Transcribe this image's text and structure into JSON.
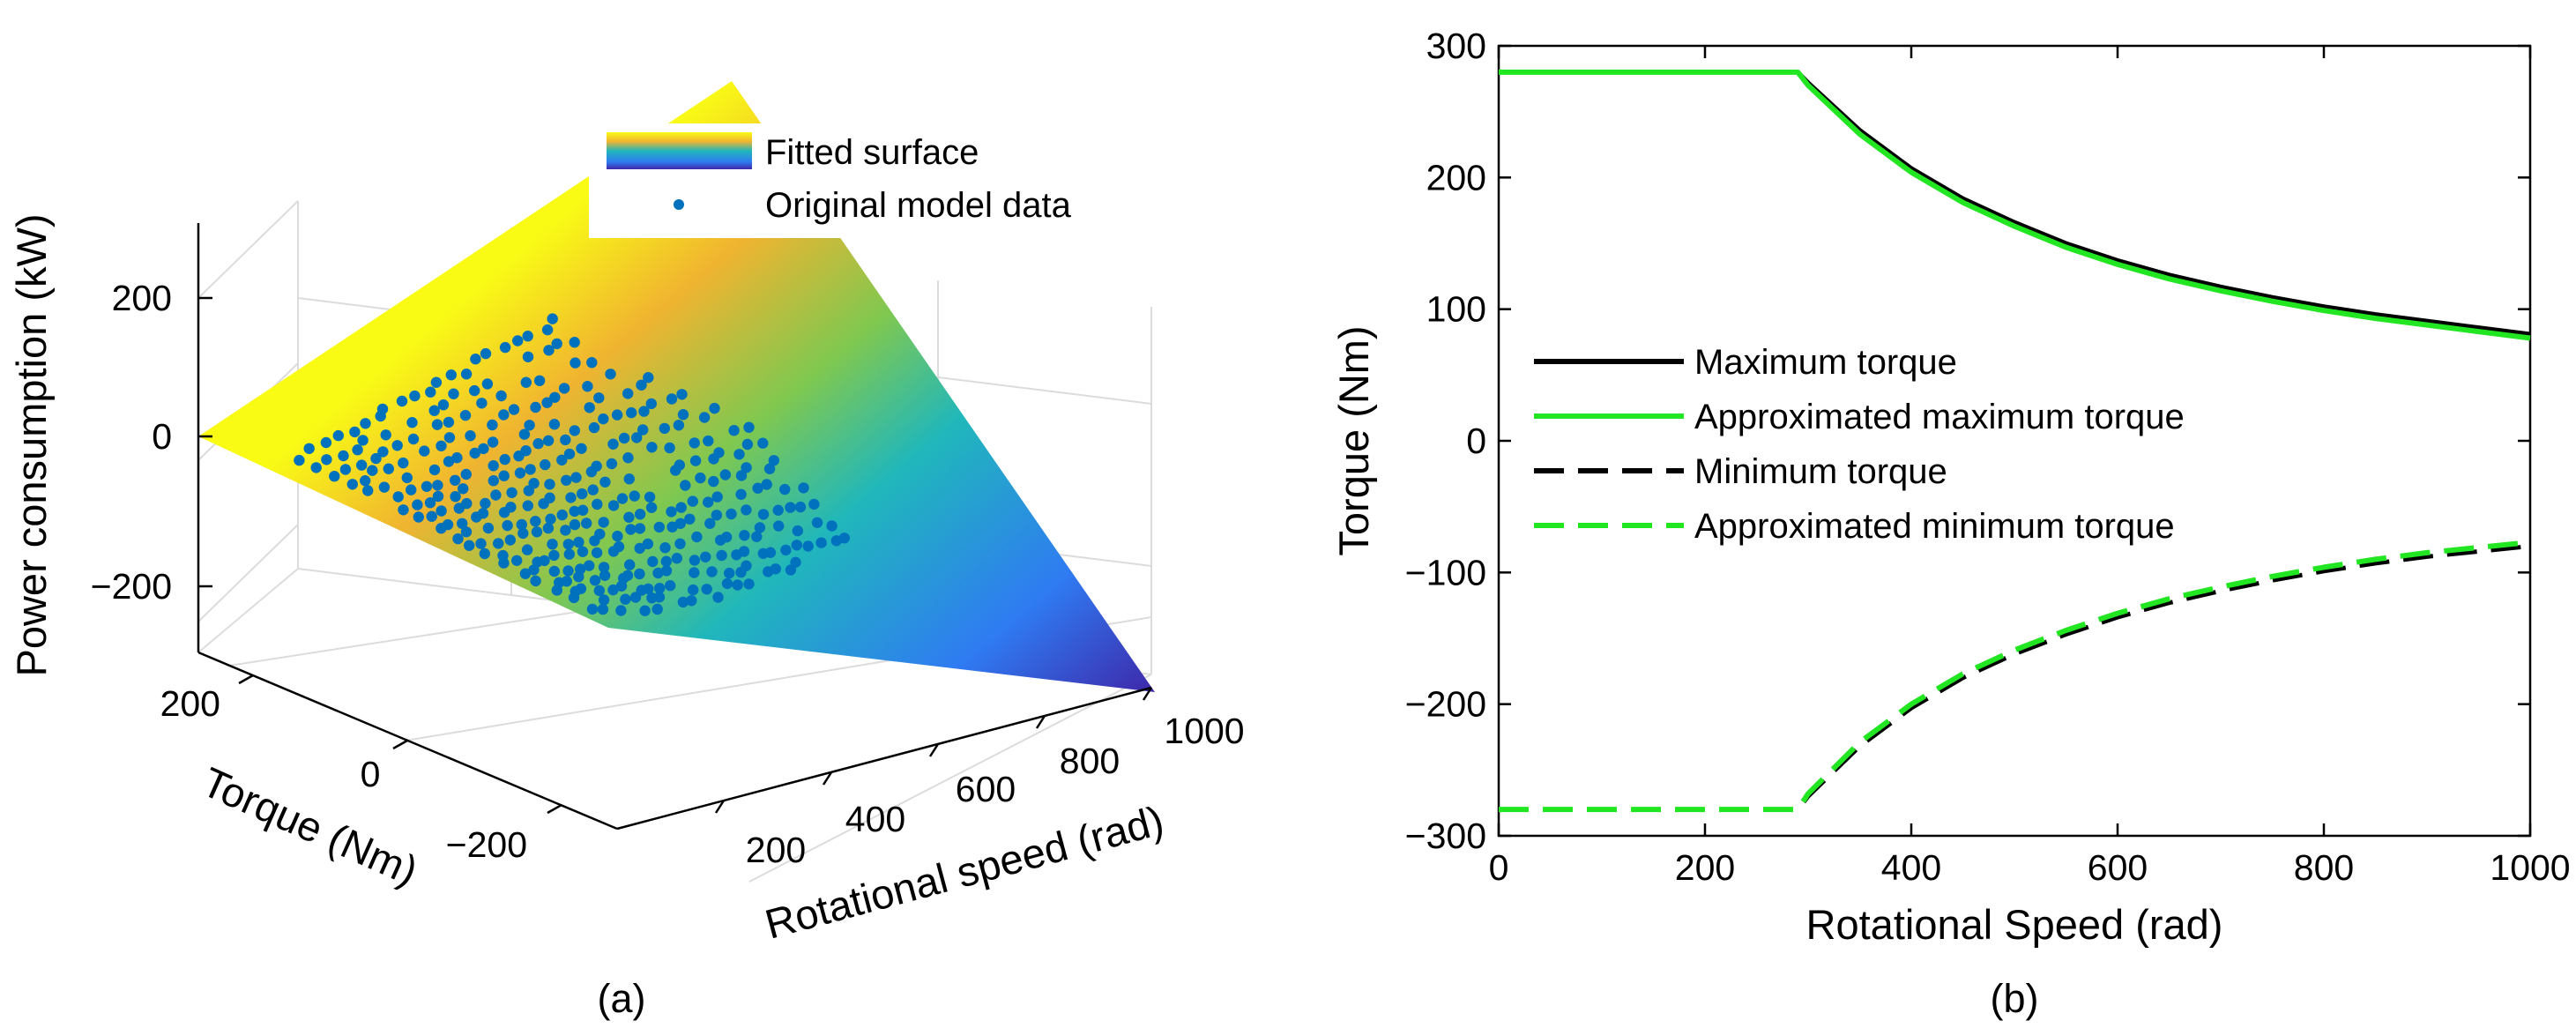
{
  "chart_data": [
    {
      "type": "surface3d",
      "panel_label": "(a)",
      "xlabel": "Rotational speed (rad)",
      "ylabel": "Torque (Nm)",
      "zlabel": "Power consumption (kW)",
      "x_ticks": [
        "200",
        "400",
        "600",
        "800",
        "1000"
      ],
      "y_ticks": [
        "200",
        "0",
        "−200"
      ],
      "z_ticks": [
        "200",
        "0",
        "−200"
      ],
      "xlim": [
        0,
        1000
      ],
      "ylim": [
        -280,
        280
      ],
      "zlim": [
        -300,
        300
      ],
      "legend": [
        {
          "label": "Fitted surface",
          "kind": "surface"
        },
        {
          "label": "Original model data",
          "kind": "marker",
          "color": "#0072bd"
        }
      ],
      "surface_model": "power_kW = speed * torque / 1000",
      "data_points_note": "scattered model data points within the feasible torque-speed envelope",
      "colormap": [
        "#3e26a8",
        "#2f7bf2",
        "#20b7bb",
        "#7fc850",
        "#f0b430",
        "#f9fb15"
      ]
    },
    {
      "type": "line",
      "panel_label": "(b)",
      "xlabel": "Rotational Speed (rad)",
      "ylabel": "Torque (Nm)",
      "xlim": [
        0,
        1000
      ],
      "ylim": [
        -300,
        300
      ],
      "x_ticks": [
        "0",
        "200",
        "400",
        "600",
        "800",
        "1000"
      ],
      "y_ticks": [
        "300",
        "200",
        "100",
        "0",
        "−100",
        "−200",
        "−300"
      ],
      "x_tick_values": [
        0,
        200,
        400,
        600,
        800,
        1000
      ],
      "y_tick_values": [
        300,
        200,
        100,
        0,
        -100,
        -200,
        -300
      ],
      "legend_position": "center-left",
      "x": [
        0,
        100,
        200,
        290,
        300,
        350,
        400,
        450,
        500,
        550,
        600,
        650,
        700,
        750,
        800,
        850,
        900,
        950,
        1000
      ],
      "series": [
        {
          "name": "Maximum torque",
          "color": "#000000",
          "dash": "solid",
          "values": [
            280,
            280,
            280,
            280,
            272,
            236,
            207,
            184,
            166,
            150,
            137,
            126,
            117,
            109,
            102,
            96,
            91,
            86,
            81
          ]
        },
        {
          "name": "Approximated maximum torque",
          "color": "#22e622",
          "dash": "solid",
          "values": [
            280,
            280,
            280,
            280,
            270,
            233,
            204,
            181,
            163,
            147,
            134,
            123,
            114,
            106,
            99,
            93,
            88,
            83,
            78
          ]
        },
        {
          "name": "Minimum torque",
          "color": "#000000",
          "dash": "dashed",
          "values": [
            -280,
            -280,
            -280,
            -280,
            -270,
            -232,
            -203,
            -180,
            -162,
            -147,
            -134,
            -123,
            -114,
            -106,
            -99,
            -93,
            -88,
            -84,
            -80
          ]
        },
        {
          "name": "Approximated minimum torque",
          "color": "#22e622",
          "dash": "dashed",
          "values": [
            -280,
            -280,
            -280,
            -280,
            -268,
            -229,
            -200,
            -177,
            -159,
            -144,
            -131,
            -120,
            -111,
            -103,
            -96,
            -90,
            -85,
            -81,
            -77
          ]
        }
      ]
    }
  ],
  "colors": {
    "marker": "#0072bd",
    "grid": "#dcdcdc",
    "axis": "#000000"
  }
}
